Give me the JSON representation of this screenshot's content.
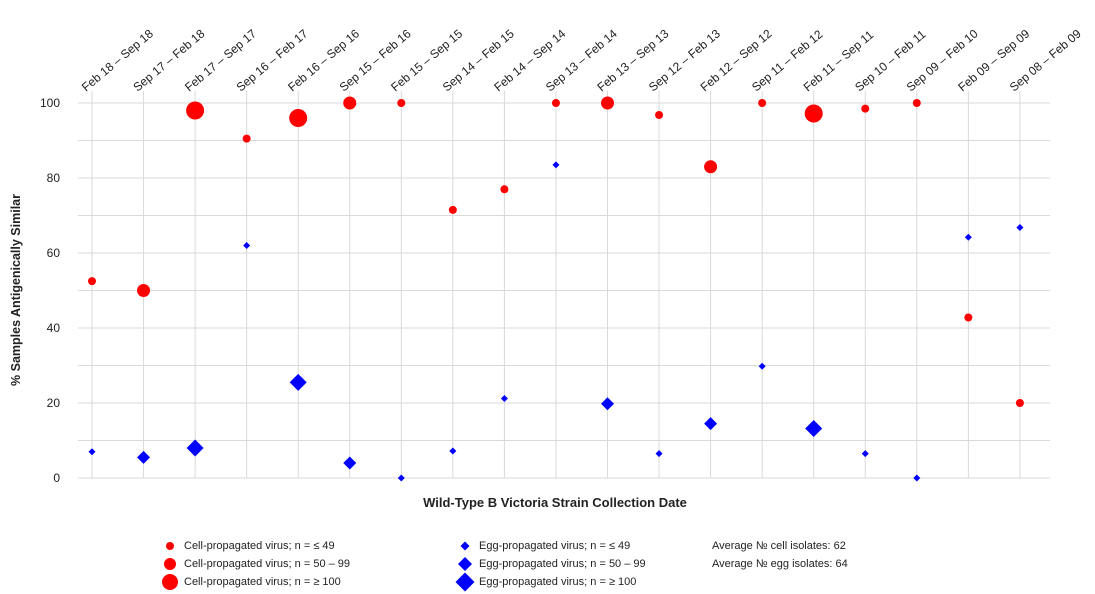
{
  "chart_data": {
    "type": "scatter",
    "xlabel": "Wild-Type B Victoria Strain Collection Date",
    "ylabel": "% Samples Antigenically Similar",
    "ylim": [
      0,
      100
    ],
    "yticks": [
      0,
      20,
      40,
      60,
      80,
      100
    ],
    "grid": true,
    "legend_position": "bottom",
    "categories": [
      "Feb 18 – Sep 18",
      "Sep 17 – Feb 18",
      "Feb 17 – Sep 17",
      "Sep 16 – Feb 17",
      "Feb 16 – Sep 16",
      "Sep 15 – Feb 16",
      "Feb 15 – Sep 15",
      "Sep 14 – Feb 15",
      "Feb 14 – Sep 14",
      "Sep 13 – Feb 14",
      "Feb 13 – Sep 13",
      "Sep 12 – Feb 13",
      "Feb 12 – Sep 12",
      "Sep 11 – Feb 12",
      "Feb 11 – Sep 11",
      "Sep 10 – Feb 11",
      "Sep 09 – Feb 10",
      "Feb 09 – Sep 09",
      "Sep 08 – Feb 09"
    ],
    "series": [
      {
        "name": "Cell-propagated virus",
        "marker": "circle",
        "color": "#ff0000",
        "values": [
          52.5,
          50,
          98,
          90.5,
          96,
          100,
          100,
          71.5,
          77,
          100,
          100,
          96.8,
          83,
          100,
          97.2,
          98.5,
          100,
          42.8,
          20
        ],
        "size_class": [
          "small",
          "medium",
          "large",
          "small",
          "large",
          "medium",
          "small",
          "small",
          "small",
          "small",
          "medium",
          "small",
          "medium",
          "small",
          "large",
          "small",
          "small",
          "small",
          "small"
        ]
      },
      {
        "name": "Egg-propagated virus",
        "marker": "diamond",
        "color": "#0000ff",
        "values": [
          7,
          5.5,
          8,
          62,
          25.5,
          4,
          0,
          7.2,
          21.2,
          83.5,
          19.8,
          6.5,
          14.5,
          29.8,
          13.2,
          6.5,
          0,
          64.2,
          66.8
        ],
        "size_class": [
          "small",
          "medium",
          "large",
          "small",
          "large",
          "medium",
          "small",
          "small",
          "small",
          "small",
          "medium",
          "small",
          "medium",
          "small",
          "large",
          "small",
          "small",
          "small",
          "small"
        ]
      }
    ]
  },
  "legend": {
    "cell_small": "Cell-propagated virus; n = ≤ 49",
    "cell_medium": "Cell-propagated virus; n = 50 – 99",
    "cell_large": "Cell-propagated virus; n = ≥ 100",
    "egg_small": "Egg-propagated virus; n = ≤ 49",
    "egg_medium": "Egg-propagated virus; n = 50 – 99",
    "egg_large": "Egg-propagated virus; n = ≥ 100"
  },
  "notes": {
    "avg_cell": "Average № cell isolates: 62",
    "avg_egg": "Average № egg isolates: 64"
  }
}
